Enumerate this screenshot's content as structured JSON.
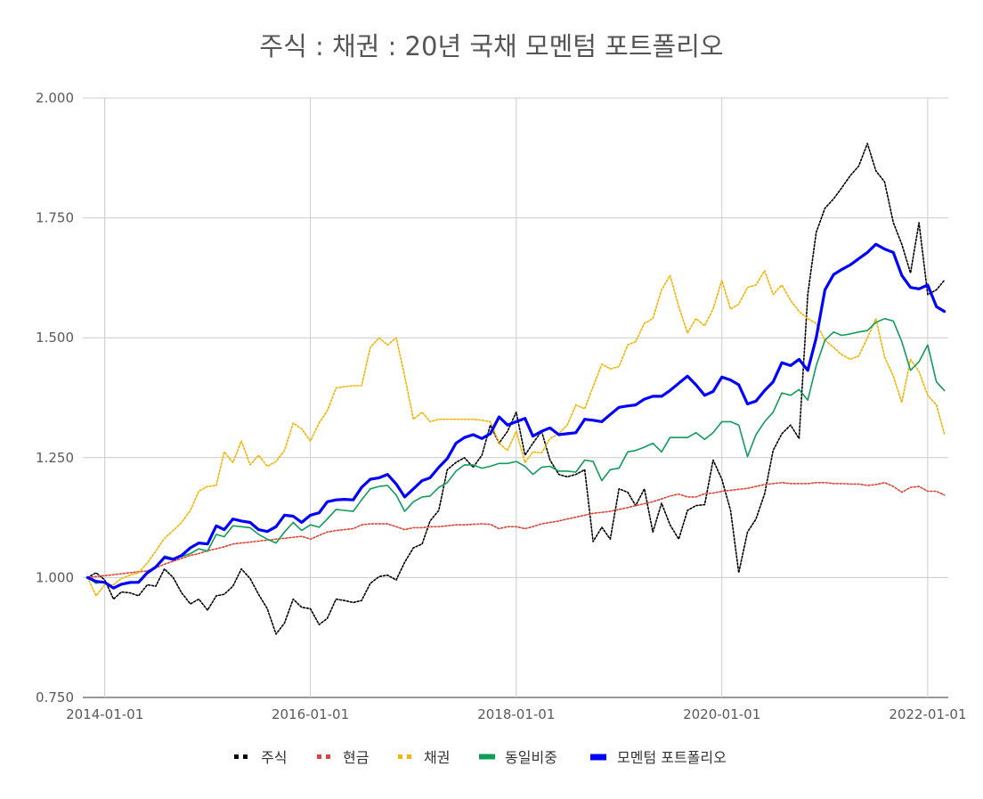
{
  "chart_data": {
    "type": "line",
    "title": "주식 : 채권 : 20년 국채 모멘텀 포트폴리오",
    "xlabel": "",
    "ylabel": "",
    "ylim": [
      0.75,
      2.0
    ],
    "xlim": [
      "2013-10-15",
      "2022-03-15"
    ],
    "y_ticks": [
      "0.750",
      "1.000",
      "1.250",
      "1.500",
      "1.750",
      "2.000"
    ],
    "x_ticks": [
      "2014-01-01",
      "2016-01-01",
      "2018-01-01",
      "2020-01-01",
      "2022-01-01"
    ],
    "grid": true,
    "legend_position": "bottom",
    "x": [
      "2013-11",
      "2013-12",
      "2014-01",
      "2014-02",
      "2014-03",
      "2014-04",
      "2014-05",
      "2014-06",
      "2014-07",
      "2014-08",
      "2014-09",
      "2014-10",
      "2014-11",
      "2014-12",
      "2015-01",
      "2015-02",
      "2015-03",
      "2015-04",
      "2015-05",
      "2015-06",
      "2015-07",
      "2015-08",
      "2015-09",
      "2015-10",
      "2015-11",
      "2015-12",
      "2016-01",
      "2016-02",
      "2016-03",
      "2016-04",
      "2016-05",
      "2016-06",
      "2016-07",
      "2016-08",
      "2016-09",
      "2016-10",
      "2016-11",
      "2016-12",
      "2017-01",
      "2017-02",
      "2017-03",
      "2017-04",
      "2017-05",
      "2017-06",
      "2017-07",
      "2017-08",
      "2017-09",
      "2017-10",
      "2017-11",
      "2017-12",
      "2018-01",
      "2018-02",
      "2018-03",
      "2018-04",
      "2018-05",
      "2018-06",
      "2018-07",
      "2018-08",
      "2018-09",
      "2018-10",
      "2018-11",
      "2018-12",
      "2019-01",
      "2019-02",
      "2019-03",
      "2019-04",
      "2019-05",
      "2019-06",
      "2019-07",
      "2019-08",
      "2019-09",
      "2019-10",
      "2019-11",
      "2019-12",
      "2020-01",
      "2020-02",
      "2020-03",
      "2020-04",
      "2020-05",
      "2020-06",
      "2020-07",
      "2020-08",
      "2020-09",
      "2020-10",
      "2020-11",
      "2020-12",
      "2021-01",
      "2021-02",
      "2021-03",
      "2021-04",
      "2021-05",
      "2021-06",
      "2021-07",
      "2021-08",
      "2021-09",
      "2021-10",
      "2021-11",
      "2021-12",
      "2022-01",
      "2022-02",
      "2022-03"
    ],
    "series": [
      {
        "name": "주식",
        "color": "#000000",
        "style": "dotted",
        "values": [
          1.0,
          1.01,
          0.995,
          0.955,
          0.97,
          0.968,
          0.962,
          0.985,
          0.982,
          1.018,
          1.0,
          0.968,
          0.945,
          0.955,
          0.932,
          0.962,
          0.965,
          0.982,
          1.018,
          0.998,
          0.965,
          0.935,
          0.882,
          0.905,
          0.955,
          0.938,
          0.935,
          0.902,
          0.915,
          0.955,
          0.952,
          0.948,
          0.952,
          0.988,
          1.002,
          1.005,
          0.995,
          1.032,
          1.062,
          1.07,
          1.118,
          1.14,
          1.225,
          1.24,
          1.25,
          1.23,
          1.255,
          1.318,
          1.28,
          1.305,
          1.345,
          1.255,
          1.28,
          1.305,
          1.245,
          1.215,
          1.21,
          1.215,
          1.225,
          1.075,
          1.105,
          1.08,
          1.185,
          1.178,
          1.15,
          1.185,
          1.095,
          1.155,
          1.11,
          1.08,
          1.14,
          1.15,
          1.152,
          1.245,
          1.205,
          1.14,
          1.01,
          1.095,
          1.122,
          1.175,
          1.265,
          1.3,
          1.318,
          1.29,
          1.59,
          1.72,
          1.77,
          1.79,
          1.812,
          1.838,
          1.858,
          1.905,
          1.848,
          1.825,
          1.74,
          1.695,
          1.635,
          1.74,
          1.59,
          1.6,
          1.62
        ]
      },
      {
        "name": "현금",
        "color": "#db4437",
        "style": "dotted",
        "values": [
          1.0,
          1.002,
          1.004,
          1.006,
          1.008,
          1.01,
          1.012,
          1.014,
          1.02,
          1.028,
          1.034,
          1.04,
          1.046,
          1.05,
          1.056,
          1.06,
          1.064,
          1.07,
          1.072,
          1.074,
          1.076,
          1.078,
          1.08,
          1.082,
          1.084,
          1.086,
          1.08,
          1.088,
          1.095,
          1.098,
          1.1,
          1.102,
          1.11,
          1.112,
          1.112,
          1.112,
          1.106,
          1.1,
          1.104,
          1.104,
          1.106,
          1.106,
          1.108,
          1.11,
          1.11,
          1.111,
          1.112,
          1.111,
          1.102,
          1.106,
          1.106,
          1.102,
          1.106,
          1.112,
          1.115,
          1.118,
          1.122,
          1.126,
          1.13,
          1.134,
          1.136,
          1.138,
          1.142,
          1.146,
          1.15,
          1.154,
          1.158,
          1.164,
          1.17,
          1.174,
          1.168,
          1.168,
          1.175,
          1.176,
          1.18,
          1.182,
          1.184,
          1.186,
          1.19,
          1.194,
          1.196,
          1.198,
          1.196,
          1.196,
          1.196,
          1.198,
          1.198,
          1.196,
          1.196,
          1.195,
          1.195,
          1.192,
          1.194,
          1.198,
          1.19,
          1.178,
          1.188,
          1.19,
          1.18,
          1.18,
          1.172
        ]
      },
      {
        "name": "채권",
        "color": "#f4b400",
        "style": "dotted",
        "values": [
          1.0,
          0.962,
          0.985,
          0.985,
          0.998,
          1.005,
          1.01,
          1.03,
          1.055,
          1.082,
          1.098,
          1.115,
          1.14,
          1.18,
          1.19,
          1.192,
          1.262,
          1.24,
          1.285,
          1.235,
          1.255,
          1.232,
          1.242,
          1.265,
          1.322,
          1.31,
          1.285,
          1.322,
          1.348,
          1.395,
          1.398,
          1.4,
          1.4,
          1.48,
          1.5,
          1.485,
          1.5,
          1.42,
          1.33,
          1.345,
          1.325,
          1.33,
          1.33,
          1.33,
          1.33,
          1.33,
          1.328,
          1.325,
          1.28,
          1.265,
          1.305,
          1.24,
          1.262,
          1.26,
          1.29,
          1.3,
          1.318,
          1.36,
          1.352,
          1.398,
          1.445,
          1.435,
          1.44,
          1.485,
          1.492,
          1.53,
          1.54,
          1.6,
          1.63,
          1.565,
          1.51,
          1.54,
          1.525,
          1.56,
          1.62,
          1.56,
          1.57,
          1.605,
          1.61,
          1.64,
          1.59,
          1.61,
          1.578,
          1.555,
          1.54,
          1.53,
          1.495,
          1.48,
          1.465,
          1.455,
          1.462,
          1.5,
          1.54,
          1.46,
          1.42,
          1.365,
          1.455,
          1.43,
          1.38,
          1.36,
          1.3
        ]
      },
      {
        "name": "동일비중",
        "color": "#0f9d58",
        "style": "solid",
        "values": [
          1.0,
          0.988,
          0.992,
          0.978,
          0.985,
          0.988,
          0.992,
          1.008,
          1.02,
          1.045,
          1.04,
          1.044,
          1.05,
          1.06,
          1.055,
          1.09,
          1.085,
          1.108,
          1.106,
          1.104,
          1.09,
          1.08,
          1.072,
          1.095,
          1.115,
          1.098,
          1.11,
          1.105,
          1.122,
          1.142,
          1.14,
          1.138,
          1.162,
          1.185,
          1.19,
          1.192,
          1.172,
          1.138,
          1.158,
          1.168,
          1.17,
          1.188,
          1.198,
          1.222,
          1.235,
          1.235,
          1.228,
          1.232,
          1.238,
          1.238,
          1.242,
          1.232,
          1.215,
          1.23,
          1.232,
          1.222,
          1.222,
          1.22,
          1.245,
          1.242,
          1.202,
          1.225,
          1.228,
          1.262,
          1.265,
          1.272,
          1.28,
          1.262,
          1.292,
          1.292,
          1.292,
          1.302,
          1.288,
          1.302,
          1.325,
          1.325,
          1.318,
          1.252,
          1.298,
          1.325,
          1.345,
          1.385,
          1.38,
          1.392,
          1.37,
          1.442,
          1.495,
          1.512,
          1.505,
          1.508,
          1.512,
          1.515,
          1.532,
          1.54,
          1.535,
          1.492,
          1.432,
          1.45,
          1.485,
          1.408,
          1.39
        ]
      },
      {
        "name": "모멘텀 포트폴리오",
        "color": "#0000ff",
        "style": "solid-bold",
        "values": [
          1.0,
          0.992,
          0.99,
          0.978,
          0.986,
          0.99,
          0.99,
          1.01,
          1.022,
          1.042,
          1.038,
          1.046,
          1.062,
          1.072,
          1.07,
          1.108,
          1.1,
          1.122,
          1.118,
          1.115,
          1.1,
          1.096,
          1.106,
          1.13,
          1.128,
          1.115,
          1.13,
          1.135,
          1.158,
          1.162,
          1.163,
          1.162,
          1.188,
          1.205,
          1.208,
          1.215,
          1.195,
          1.168,
          1.185,
          1.202,
          1.208,
          1.23,
          1.248,
          1.28,
          1.292,
          1.298,
          1.29,
          1.3,
          1.335,
          1.318,
          1.325,
          1.332,
          1.295,
          1.305,
          1.312,
          1.298,
          1.3,
          1.302,
          1.33,
          1.328,
          1.325,
          1.34,
          1.355,
          1.358,
          1.36,
          1.372,
          1.378,
          1.378,
          1.39,
          1.405,
          1.42,
          1.402,
          1.38,
          1.388,
          1.418,
          1.412,
          1.402,
          1.362,
          1.368,
          1.39,
          1.408,
          1.448,
          1.442,
          1.455,
          1.432,
          1.5,
          1.6,
          1.632,
          1.642,
          1.652,
          1.665,
          1.678,
          1.695,
          1.685,
          1.678,
          1.63,
          1.605,
          1.602,
          1.61,
          1.565,
          1.555
        ]
      }
    ]
  }
}
